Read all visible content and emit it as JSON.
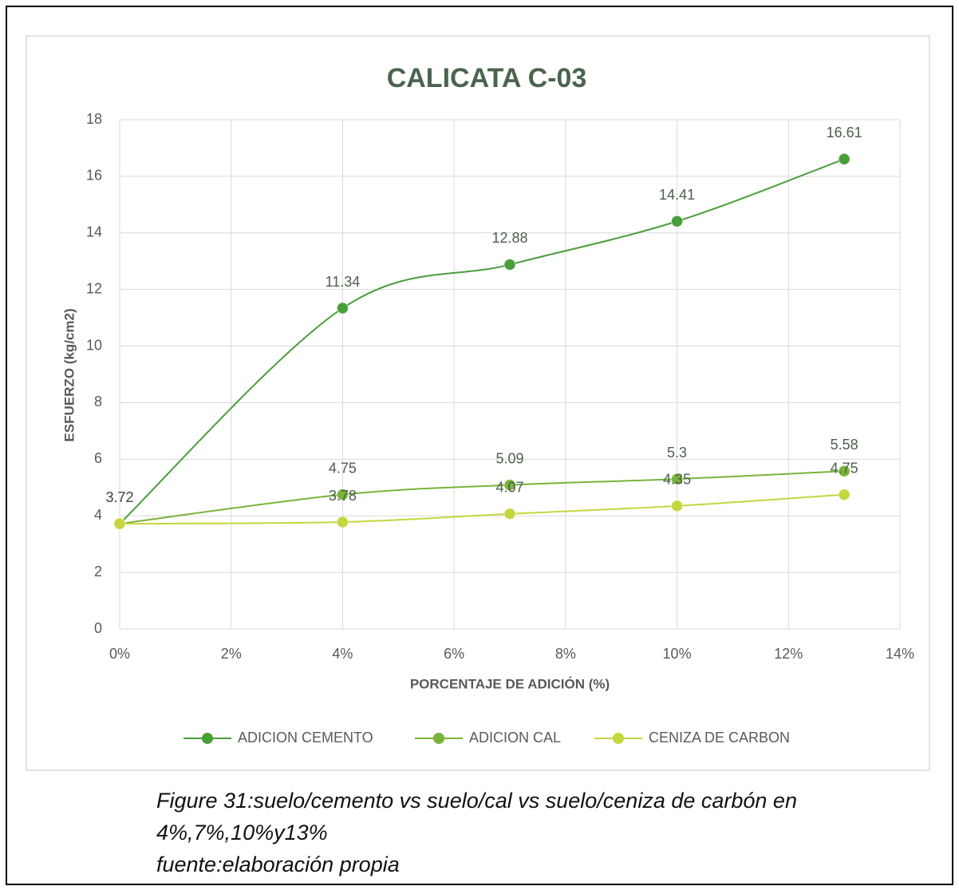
{
  "chart_data": {
    "type": "line",
    "title": "CALICATA C-03",
    "xlabel": "PORCENTAJE DE ADICIÓN (%)",
    "ylabel": "ESFUERZO (kg/cm2)",
    "x": [
      0,
      4,
      7,
      10,
      13
    ],
    "series": [
      {
        "name": "ADICION CEMENTO",
        "color": "#4a9e3a",
        "values": [
          3.72,
          11.34,
          12.88,
          14.41,
          16.61
        ]
      },
      {
        "name": "ADICION CAL",
        "color": "#7ab33a",
        "values": [
          3.72,
          4.75,
          5.09,
          5.3,
          5.58
        ]
      },
      {
        "name": "CENIZA DE CARBON",
        "color": "#c5d63e",
        "values": [
          3.72,
          3.78,
          4.07,
          4.35,
          4.75
        ]
      }
    ],
    "xlim": [
      0,
      14
    ],
    "xticks": [
      {
        "value": 0,
        "label": "0%"
      },
      {
        "value": 2,
        "label": "2%"
      },
      {
        "value": 4,
        "label": "4%"
      },
      {
        "value": 6,
        "label": "6%"
      },
      {
        "value": 8,
        "label": "8%"
      },
      {
        "value": 10,
        "label": "10%"
      },
      {
        "value": 12,
        "label": "12%"
      },
      {
        "value": 14,
        "label": "14%"
      }
    ],
    "ylim": [
      0,
      18
    ],
    "yticks": [
      0,
      2,
      4,
      6,
      8,
      10,
      12,
      14,
      16,
      18
    ],
    "grid": true,
    "smooth": true,
    "legend": "bottom"
  },
  "caption": [
    "Figure 31:suelo/cemento vs suelo/cal vs suelo/ceniza de carbón en",
    "4%,7%,10%y13%",
    "fuente:elaboración propia"
  ]
}
